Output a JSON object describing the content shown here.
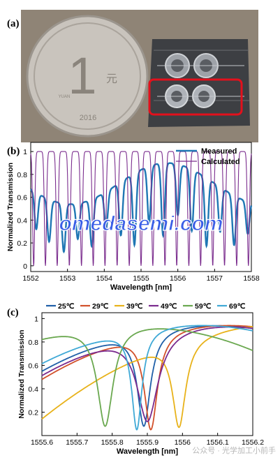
{
  "figure": {
    "panels": [
      {
        "label": "(a)"
      },
      {
        "label": "(b)"
      },
      {
        "label": "(c)"
      }
    ],
    "coin": {
      "value": "1",
      "chars": "元",
      "year": "2016",
      "small": "YUAN"
    },
    "watermark_overlay": "omedasemi.com",
    "footer_watermark": "公众号 · 光学加工小前手"
  },
  "chart_data": [
    {
      "type": "line",
      "panel": "(b)",
      "xlabel": "Wavelength [nm]",
      "ylabel": "Normalized Transmission",
      "xlim": [
        1552,
        1558
      ],
      "ylim": [
        -0.05,
        1.08
      ],
      "xticks": [
        1552,
        1553,
        1554,
        1555,
        1556,
        1557,
        1558
      ],
      "yticks": [
        0,
        0.2,
        0.4,
        0.6,
        0.8,
        1
      ],
      "legend": "top-right",
      "series": [
        {
          "name": "Measured",
          "color": "#1f77b4",
          "x_dips": [
            1552.15,
            1552.5,
            1552.9,
            1553.28,
            1553.66,
            1554.05,
            1554.45,
            1554.82,
            1555.22,
            1555.6,
            1556.0,
            1556.38,
            1556.78,
            1557.15,
            1557.53,
            1557.9
          ],
          "peak": 0.9,
          "min": 0.08
        },
        {
          "name": "Calculated",
          "color": "#7b2d8e",
          "x_dips": [
            1552.08,
            1552.4,
            1552.72,
            1553.05,
            1553.38,
            1553.7,
            1554.02,
            1554.35,
            1554.68,
            1555.0,
            1555.32,
            1555.65,
            1555.97,
            1556.3,
            1556.62,
            1556.95,
            1557.27,
            1557.6,
            1557.92
          ],
          "peak": 1.0,
          "min": 0.0
        }
      ]
    },
    {
      "type": "line",
      "panel": "(c)",
      "xlabel": "Wavelength [nm]",
      "ylabel": "Normalized Transmission",
      "xlim": [
        1555.6,
        1556.2
      ],
      "ylim": [
        0,
        1.05
      ],
      "xticks": [
        1555.6,
        1555.7,
        1555.8,
        1555.9,
        1556,
        1556.1,
        1556.2
      ],
      "yticks": [
        0.2,
        0.4,
        0.6,
        0.8,
        1
      ],
      "legend": "top",
      "series": [
        {
          "name": "25℃",
          "color": "#1f5fa8",
          "dip": 1555.89,
          "width": 0.05,
          "depth": 0.08
        },
        {
          "name": "29℃",
          "color": "#d2502a",
          "dip": 1555.91,
          "width": 0.05,
          "depth": 0.05
        },
        {
          "name": "39℃",
          "color": "#e8b21a",
          "dip": 1555.99,
          "width": 0.05,
          "depth": 0.07
        },
        {
          "name": "49℃",
          "color": "#7a2a8e",
          "dip": 1555.9,
          "width": 0.08,
          "depth": 0.12
        },
        {
          "name": "59℃",
          "color": "#6aa84f",
          "dip": 1555.78,
          "width": 0.06,
          "depth": 0.08
        },
        {
          "name": "69℃",
          "color": "#3fa9d6",
          "dip": 1555.87,
          "width": 0.04,
          "depth": 0.05
        }
      ]
    }
  ]
}
